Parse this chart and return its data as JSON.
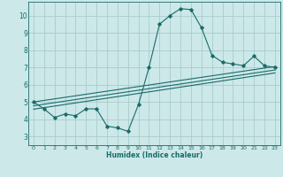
{
  "xlabel": "Humidex (Indice chaleur)",
  "xlim": [
    -0.5,
    23.5
  ],
  "ylim": [
    2.5,
    10.8
  ],
  "bg_color": "#cce8e8",
  "grid_color": "#aacccc",
  "line_color": "#1a6b6b",
  "xticks": [
    0,
    1,
    2,
    3,
    4,
    5,
    6,
    7,
    8,
    9,
    10,
    11,
    12,
    13,
    14,
    15,
    16,
    17,
    18,
    19,
    20,
    21,
    22,
    23
  ],
  "yticks": [
    3,
    4,
    5,
    6,
    7,
    8,
    9,
    10
  ],
  "main_x": [
    0,
    1,
    2,
    3,
    4,
    5,
    6,
    7,
    8,
    9,
    10,
    11,
    12,
    13,
    14,
    15,
    16,
    17,
    18,
    19,
    20,
    21,
    22,
    23
  ],
  "main_y": [
    5.0,
    4.6,
    4.1,
    4.3,
    4.2,
    4.6,
    4.6,
    3.6,
    3.5,
    3.3,
    4.85,
    7.0,
    9.5,
    10.0,
    10.4,
    10.35,
    9.3,
    7.7,
    7.3,
    7.2,
    7.1,
    7.65,
    7.1,
    7.0
  ],
  "line1_x": [
    0,
    23
  ],
  "line1_y": [
    5.0,
    7.05
  ],
  "line2_x": [
    0,
    23
  ],
  "line2_y": [
    4.78,
    6.85
  ],
  "line3_x": [
    0,
    23
  ],
  "line3_y": [
    4.58,
    6.68
  ]
}
